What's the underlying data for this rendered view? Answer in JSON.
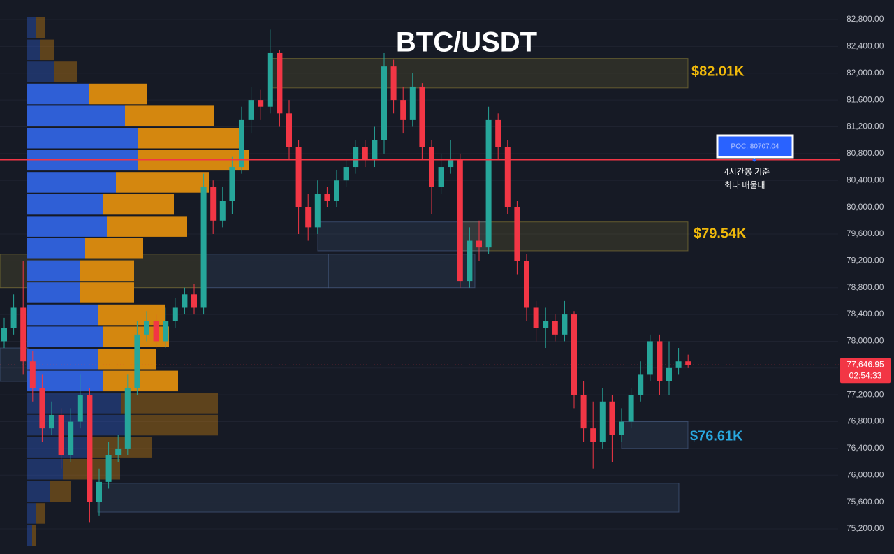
{
  "chart_data": {
    "type": "candlestick",
    "title": "BTC/USDT",
    "ylim": [
      74825,
      83092
    ],
    "yticks": [
      {
        "value": 75200,
        "label": "75,200.00"
      },
      {
        "value": 75600,
        "label": "75,600.00"
      },
      {
        "value": 76000,
        "label": "76,000.00"
      },
      {
        "value": 76400,
        "label": "76,400.00"
      },
      {
        "value": 76800,
        "label": "76,800.00"
      },
      {
        "value": 77200,
        "label": "77,200.00"
      },
      {
        "value": 77600,
        "label": "77,600.00"
      },
      {
        "value": 78000,
        "label": "78,000.00"
      },
      {
        "value": 78400,
        "label": "78,400.00"
      },
      {
        "value": 78800,
        "label": "78,800.00"
      },
      {
        "value": 79200,
        "label": "79,200.00"
      },
      {
        "value": 79600,
        "label": "79,600.00"
      },
      {
        "value": 80000,
        "label": "80,000.00"
      },
      {
        "value": 80400,
        "label": "80,400.00"
      },
      {
        "value": 80800,
        "label": "80,800.00"
      },
      {
        "value": 81200,
        "label": "81,200.00"
      },
      {
        "value": 81600,
        "label": "81,600.00"
      },
      {
        "value": 82000,
        "label": "82,000.00"
      },
      {
        "value": 82400,
        "label": "82,400.00"
      },
      {
        "value": 82800,
        "label": "82,800.00"
      }
    ],
    "up_color": "#26a69a",
    "down_color": "#f23645",
    "open": [
      78000,
      78200,
      78500,
      77700,
      77300,
      76700,
      76900,
      76300,
      76800,
      77200,
      75600,
      75900,
      76300,
      76400,
      77300,
      78100,
      78300,
      78000,
      78300,
      78500,
      78700,
      78500,
      80300,
      79800,
      80100,
      80600,
      81300,
      81600,
      81500,
      82300,
      81400,
      80900,
      80000,
      79700,
      80200,
      80100,
      80400,
      80600,
      80900,
      80700,
      81000,
      82100,
      81600,
      81300,
      81800,
      80900,
      80300,
      80600,
      80700,
      78900,
      79500,
      79400,
      81300,
      80900,
      80000,
      79200,
      78500,
      78200,
      78300,
      78100,
      78400,
      77200,
      76700,
      76500,
      77100,
      76600,
      76800,
      77200,
      77500,
      78000,
      77400,
      77600,
      77700
    ],
    "high": [
      78350,
      78700,
      79200,
      77850,
      77500,
      77100,
      77000,
      77000,
      77500,
      77300,
      76100,
      76500,
      76600,
      77500,
      78300,
      78450,
      78400,
      78500,
      78650,
      78800,
      78850,
      80500,
      80400,
      80300,
      80750,
      81500,
      81800,
      81750,
      82650,
      82350,
      81600,
      81000,
      80200,
      80400,
      80300,
      80550,
      80700,
      81000,
      81000,
      81200,
      82300,
      82200,
      81800,
      82000,
      81850,
      81000,
      80800,
      81000,
      80800,
      79700,
      79800,
      81500,
      81400,
      81000,
      80100,
      79300,
      78600,
      78500,
      78400,
      78600,
      78450,
      77400,
      77100,
      77300,
      77200,
      77000,
      77300,
      77700,
      78100,
      78100,
      78000,
      77900,
      77800
    ],
    "low": [
      77900,
      78100,
      77500,
      77100,
      76500,
      76600,
      76100,
      76200,
      76700,
      75300,
      75400,
      75800,
      76200,
      76300,
      77200,
      78000,
      77900,
      77900,
      78200,
      78400,
      78400,
      78400,
      79600,
      79700,
      79900,
      80500,
      81100,
      81300,
      81400,
      81200,
      80700,
      79600,
      79500,
      79600,
      80000,
      80000,
      80300,
      80500,
      80600,
      80600,
      80800,
      81400,
      81100,
      81200,
      80700,
      79900,
      80200,
      80500,
      78800,
      78800,
      79200,
      79300,
      80700,
      79900,
      79000,
      78300,
      78000,
      77900,
      78000,
      78000,
      77000,
      76500,
      76100,
      76400,
      76200,
      76500,
      76700,
      77100,
      77400,
      77200,
      77200,
      77500,
      77600
    ],
    "close": [
      78200,
      78500,
      77700,
      77300,
      76700,
      76900,
      76300,
      76800,
      77200,
      75600,
      75900,
      76300,
      76400,
      77300,
      78100,
      78300,
      78000,
      78300,
      78500,
      78700,
      78500,
      80300,
      79800,
      80100,
      80600,
      81300,
      81600,
      81500,
      82300,
      81400,
      80900,
      80000,
      79700,
      80200,
      80100,
      80400,
      80600,
      80900,
      80700,
      81000,
      82100,
      81600,
      81300,
      81800,
      80900,
      80300,
      80600,
      80700,
      78900,
      79500,
      79400,
      81300,
      80900,
      80000,
      79200,
      78500,
      78200,
      78300,
      78100,
      78400,
      77200,
      76700,
      76500,
      77100,
      76600,
      76800,
      77200,
      77500,
      78000,
      77400,
      77600,
      77700,
      77650
    ],
    "volume_profile": {
      "buy_color": "#2f5fd6",
      "sell_color": "#d4870f",
      "value_area_rows": [
        3,
        16
      ],
      "buy": [
        13,
        18,
        38,
        89,
        140,
        159,
        159,
        127,
        108,
        114,
        83,
        76,
        76,
        102,
        108,
        102,
        108,
        134,
        140,
        89,
        51,
        32,
        13,
        7
      ],
      "sell": [
        13,
        20,
        33,
        83,
        127,
        150,
        159,
        133,
        102,
        115,
        83,
        77,
        77,
        95,
        95,
        82,
        108,
        139,
        133,
        89,
        82,
        31,
        13,
        6
      ]
    },
    "zones": [
      {
        "low": 81780,
        "high": 82220,
        "color": "#b4a03c",
        "label": "$82.01K",
        "label_color": "#f0b90b"
      },
      {
        "low": 79350,
        "high": 79780,
        "color": "#b4a03c",
        "label": "$79.54K",
        "label_color": "#f0b90b"
      },
      {
        "low": 79350,
        "high": 79780,
        "color": "#5a78aa"
      },
      {
        "low": 78800,
        "high": 79300,
        "color": "#b4a03c"
      },
      {
        "low": 78800,
        "high": 79300,
        "color": "#5a78aa"
      },
      {
        "low": 78800,
        "high": 79300,
        "color": "#5a78aa"
      },
      {
        "low": 76400,
        "high": 76800,
        "color": "#5a78aa",
        "label": "$76.61K",
        "label_color": "#29a8e0"
      },
      {
        "low": 75450,
        "high": 75880,
        "color": "#5a78aa"
      },
      {
        "low": 77400,
        "high": 77900,
        "color": "#5a78aa"
      }
    ],
    "poc": {
      "value": 80707.04,
      "label": "POC: 80707.04",
      "color": "#f23645",
      "note": [
        "4시간봉 기준",
        "최다 매물대"
      ]
    },
    "last_price": {
      "value": 77646.95,
      "label": "77,646.95",
      "countdown": "02:54:33",
      "color": "#f23645"
    }
  }
}
